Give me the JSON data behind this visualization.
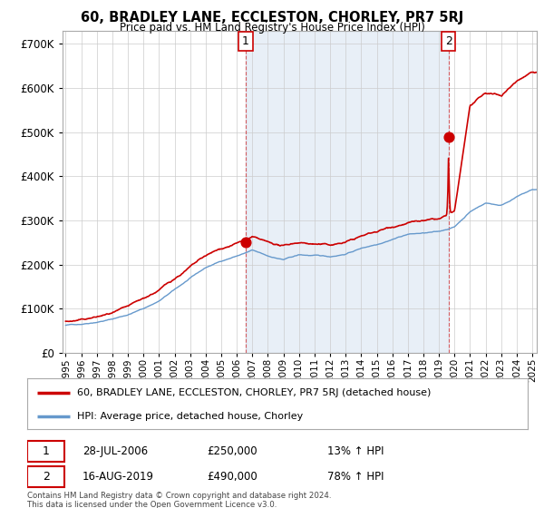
{
  "title": "60, BRADLEY LANE, ECCLESTON, CHORLEY, PR7 5RJ",
  "subtitle": "Price paid vs. HM Land Registry's House Price Index (HPI)",
  "legend_property": "60, BRADLEY LANE, ECCLESTON, CHORLEY, PR7 5RJ (detached house)",
  "legend_hpi": "HPI: Average price, detached house, Chorley",
  "footnote": "Contains HM Land Registry data © Crown copyright and database right 2024.\nThis data is licensed under the Open Government Licence v3.0.",
  "sale1_date": "28-JUL-2006",
  "sale1_price": 250000,
  "sale1_hpi": "13% ↑ HPI",
  "sale2_date": "16-AUG-2019",
  "sale2_price": 490000,
  "sale2_hpi": "78% ↑ HPI",
  "ylim": [
    0,
    730000
  ],
  "yticks": [
    0,
    100000,
    200000,
    300000,
    400000,
    500000,
    600000,
    700000
  ],
  "property_color": "#cc0000",
  "hpi_color": "#6699cc",
  "hpi_fill_color": "#ddeeff",
  "background_color": "#ffffff",
  "grid_color": "#cccccc",
  "sale1_x": 2006.57,
  "sale2_x": 2019.62,
  "xmin": 1994.8,
  "xmax": 2025.3
}
